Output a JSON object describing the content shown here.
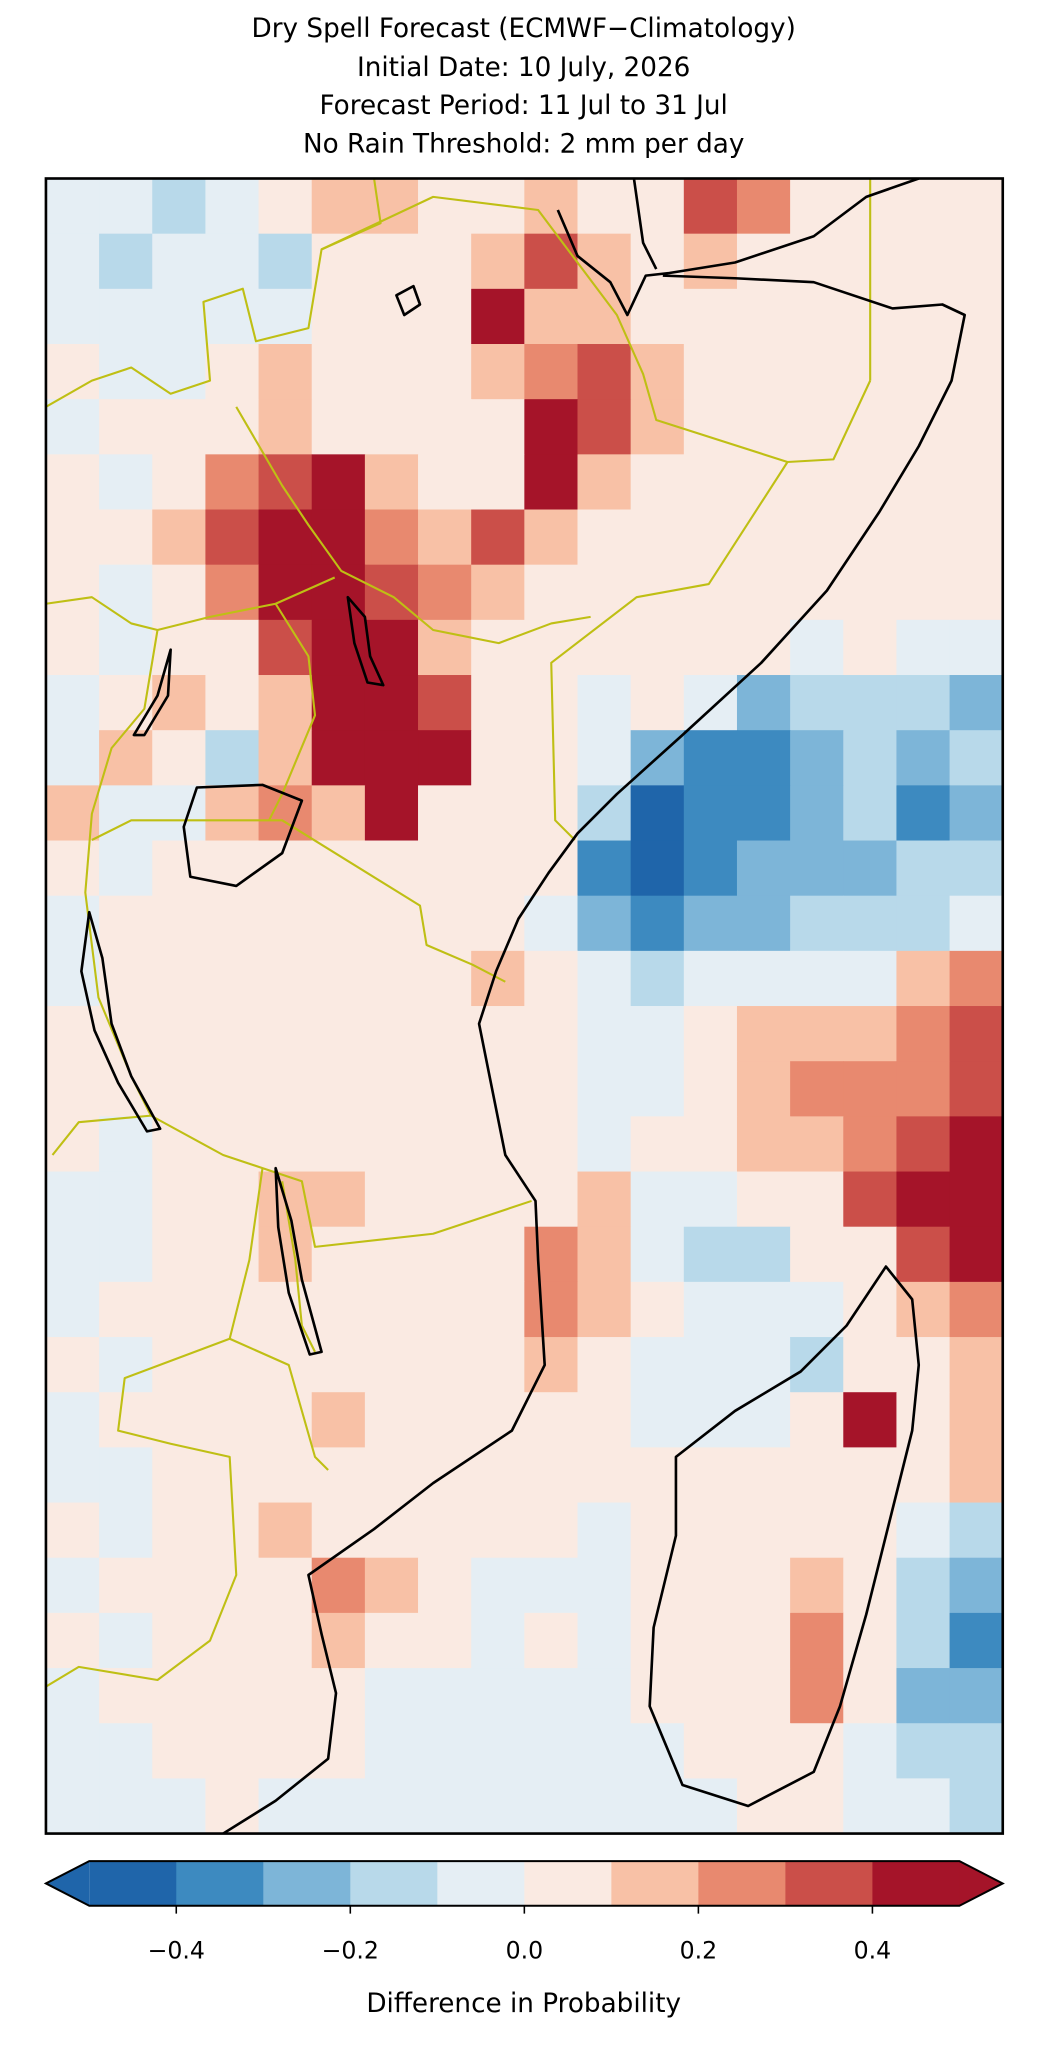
{
  "map": {
    "type": "raster",
    "title": [
      "Dry Spell Forecast (ECMWF−Climatology)",
      "Initial Date: 10 July, 2026",
      "Forecast Period: 11 Jul to 31 Jul",
      "No Rain Threshold: 2 mm per day"
    ],
    "colorbar": {
      "label": "Difference in Probability",
      "boundaries": [
        -0.5,
        -0.4,
        -0.3,
        -0.2,
        -0.1,
        0,
        0.1,
        0.2,
        0.3,
        0.4,
        0.5
      ],
      "colors": [
        "#1f65aa",
        "#3d8ac0",
        "#7db5d8",
        "#b8d9ea",
        "#e5eef4",
        "#faeae2",
        "#f8c1a6",
        "#e8896f",
        "#cb4f49",
        "#a51429"
      ],
      "extend": "both",
      "ticks": [
        {
          "value": -0.4,
          "label": "−0.4"
        },
        {
          "value": -0.2,
          "label": "−0.2"
        },
        {
          "value": 0,
          "label": "0.0"
        },
        0.2,
        0.4
      ]
    },
    "grid": {
      "values": [
        [
          -0.05,
          -0.05,
          -0.15,
          -0.05,
          0.05,
          0.15,
          0.15,
          0.05,
          0.05,
          0.15,
          0.05,
          0.05,
          0.35,
          0.25,
          0.05,
          0.05,
          0.05,
          0.05
        ],
        [
          -0.05,
          -0.15,
          -0.05,
          -0.05,
          -0.15,
          0.05,
          0.05,
          0.05,
          0.15,
          0.35,
          0.15,
          0.05,
          0.15,
          0.05,
          0.05,
          0.05,
          0.05,
          0.05
        ],
        [
          -0.05,
          -0.05,
          -0.05,
          -0.05,
          -0.05,
          0.05,
          0.05,
          0.05,
          0.45,
          0.15,
          0.15,
          0.05,
          0.05,
          0.05,
          0.05,
          0.05,
          0.05,
          0.05
        ],
        [
          0.05,
          -0.05,
          -0.05,
          0.05,
          0.15,
          0.05,
          0.05,
          0.05,
          0.15,
          0.25,
          0.35,
          0.15,
          0.05,
          0.05,
          0.05,
          0.05,
          0.05,
          0.05
        ],
        [
          -0.05,
          0.05,
          0.05,
          0.05,
          0.15,
          0.05,
          0.05,
          0.05,
          0.05,
          0.45,
          0.35,
          0.15,
          0.05,
          0.05,
          0.05,
          0.05,
          0.05,
          0.05
        ],
        [
          0.05,
          -0.05,
          0.05,
          0.25,
          0.35,
          0.45,
          0.15,
          0.05,
          0.05,
          0.45,
          0.15,
          0.05,
          0.05,
          0.05,
          0.05,
          0.05,
          0.05,
          0.05
        ],
        [
          0.05,
          0.05,
          0.15,
          0.35,
          0.45,
          0.45,
          0.25,
          0.15,
          0.35,
          0.15,
          0.05,
          0.05,
          0.05,
          0.05,
          0.05,
          0.05,
          0.05,
          0.05
        ],
        [
          0.05,
          -0.05,
          0.05,
          0.25,
          0.45,
          0.45,
          0.35,
          0.25,
          0.15,
          0.05,
          0.05,
          0.05,
          0.05,
          0.05,
          0.05,
          0.05,
          0.05,
          0.05
        ],
        [
          0.05,
          -0.05,
          0.05,
          0.05,
          0.35,
          0.45,
          0.45,
          0.15,
          0.05,
          0.05,
          0.05,
          0.05,
          0.05,
          0.05,
          -0.05,
          0.05,
          -0.05,
          -0.05
        ],
        [
          -0.05,
          0.05,
          0.15,
          0.05,
          0.15,
          0.45,
          0.45,
          0.35,
          0.05,
          0.05,
          -0.05,
          0.05,
          -0.05,
          -0.25,
          -0.15,
          -0.15,
          -0.15,
          -0.25
        ],
        [
          -0.05,
          0.15,
          0.05,
          -0.15,
          0.15,
          0.45,
          0.45,
          0.45,
          0.05,
          0.05,
          -0.05,
          -0.25,
          -0.35,
          -0.35,
          -0.25,
          -0.15,
          -0.25,
          -0.15
        ],
        [
          0.15,
          -0.05,
          -0.05,
          0.15,
          0.25,
          0.15,
          0.45,
          0.05,
          0.05,
          0.05,
          -0.15,
          -0.45,
          -0.35,
          -0.35,
          -0.25,
          -0.15,
          -0.35,
          -0.25
        ],
        [
          0.05,
          -0.05,
          0.05,
          0.05,
          0.05,
          0.05,
          0.05,
          0.05,
          0.05,
          0.05,
          -0.35,
          -0.45,
          -0.35,
          -0.25,
          -0.25,
          -0.25,
          -0.15,
          -0.15
        ],
        [
          -0.05,
          0.05,
          0.05,
          0.05,
          0.05,
          0.05,
          0.05,
          0.05,
          0.05,
          -0.05,
          -0.25,
          -0.35,
          -0.25,
          -0.25,
          -0.15,
          -0.15,
          -0.15,
          -0.05
        ],
        [
          -0.05,
          0.05,
          0.05,
          0.05,
          0.05,
          0.05,
          0.05,
          0.05,
          0.15,
          0.05,
          -0.05,
          -0.15,
          -0.05,
          -0.05,
          -0.05,
          -0.05,
          0.15,
          0.25
        ],
        [
          0.05,
          0.05,
          0.05,
          0.05,
          0.05,
          0.05,
          0.05,
          0.05,
          0.05,
          0.05,
          -0.05,
          -0.05,
          0.05,
          0.15,
          0.15,
          0.15,
          0.25,
          0.35
        ],
        [
          0.05,
          0.05,
          0.05,
          0.05,
          0.05,
          0.05,
          0.05,
          0.05,
          0.05,
          0.05,
          -0.05,
          -0.05,
          0.05,
          0.15,
          0.25,
          0.25,
          0.25,
          0.35
        ],
        [
          0.05,
          -0.05,
          0.05,
          0.05,
          0.05,
          0.05,
          0.05,
          0.05,
          0.05,
          0.05,
          -0.05,
          0.05,
          0.05,
          0.15,
          0.15,
          0.25,
          0.35,
          0.45
        ],
        [
          -0.05,
          -0.05,
          0.05,
          0.05,
          0.15,
          0.15,
          0.05,
          0.05,
          0.05,
          0.05,
          0.15,
          -0.05,
          -0.05,
          0.05,
          0.05,
          0.35,
          0.45,
          0.45
        ],
        [
          -0.05,
          -0.05,
          0.05,
          0.05,
          0.15,
          0.05,
          0.05,
          0.05,
          0.05,
          0.25,
          0.15,
          -0.05,
          -0.15,
          -0.15,
          0.05,
          0.05,
          0.35,
          0.45
        ],
        [
          -0.05,
          0.05,
          0.05,
          0.05,
          0.05,
          0.05,
          0.05,
          0.05,
          0.05,
          0.25,
          0.15,
          0.05,
          -0.05,
          -0.05,
          -0.05,
          0.05,
          0.15,
          0.25
        ],
        [
          0.05,
          -0.05,
          0.05,
          0.05,
          0.05,
          0.05,
          0.05,
          0.05,
          0.05,
          0.15,
          0.05,
          -0.05,
          -0.05,
          -0.05,
          -0.15,
          0.05,
          0.05,
          0.15
        ],
        [
          -0.05,
          0.05,
          0.05,
          0.05,
          0.05,
          0.15,
          0.05,
          0.05,
          0.05,
          0.05,
          0.05,
          -0.05,
          -0.05,
          -0.05,
          0.05,
          0.45,
          0.05,
          0.15
        ],
        [
          -0.05,
          -0.05,
          0.05,
          0.05,
          0.05,
          0.05,
          0.05,
          0.05,
          0.05,
          0.05,
          0.05,
          0.05,
          0.05,
          0.05,
          0.05,
          0.05,
          0.05,
          0.15
        ],
        [
          0.05,
          -0.05,
          0.05,
          0.05,
          0.15,
          0.05,
          0.05,
          0.05,
          0.05,
          0.05,
          -0.05,
          0.05,
          0.05,
          0.05,
          0.05,
          0.05,
          -0.05,
          -0.15
        ],
        [
          -0.05,
          0.05,
          0.05,
          0.05,
          0.05,
          0.25,
          0.15,
          0.05,
          -0.05,
          -0.05,
          -0.05,
          0.05,
          0.05,
          0.05,
          0.15,
          0.05,
          -0.15,
          -0.25
        ],
        [
          0.05,
          -0.05,
          0.05,
          0.05,
          0.05,
          0.15,
          0.05,
          0.05,
          -0.05,
          0.05,
          -0.05,
          0.05,
          0.05,
          0.05,
          0.25,
          0.05,
          -0.15,
          -0.35
        ],
        [
          -0.05,
          0.05,
          0.05,
          0.05,
          0.05,
          0.05,
          -0.05,
          -0.05,
          -0.05,
          -0.05,
          -0.05,
          0.05,
          0.05,
          0.05,
          0.25,
          0.05,
          -0.25,
          -0.25
        ],
        [
          -0.05,
          -0.05,
          0.05,
          0.05,
          0.05,
          0.05,
          -0.05,
          -0.05,
          -0.05,
          -0.05,
          -0.05,
          -0.05,
          0.05,
          0.05,
          0.05,
          -0.05,
          -0.15,
          -0.15
        ],
        [
          -0.05,
          -0.05,
          -0.05,
          0.05,
          -0.05,
          -0.05,
          -0.05,
          -0.05,
          -0.05,
          -0.05,
          -0.05,
          -0.05,
          -0.05,
          0.05,
          0.05,
          -0.05,
          -0.05,
          -0.15
        ]
      ]
    }
  }
}
